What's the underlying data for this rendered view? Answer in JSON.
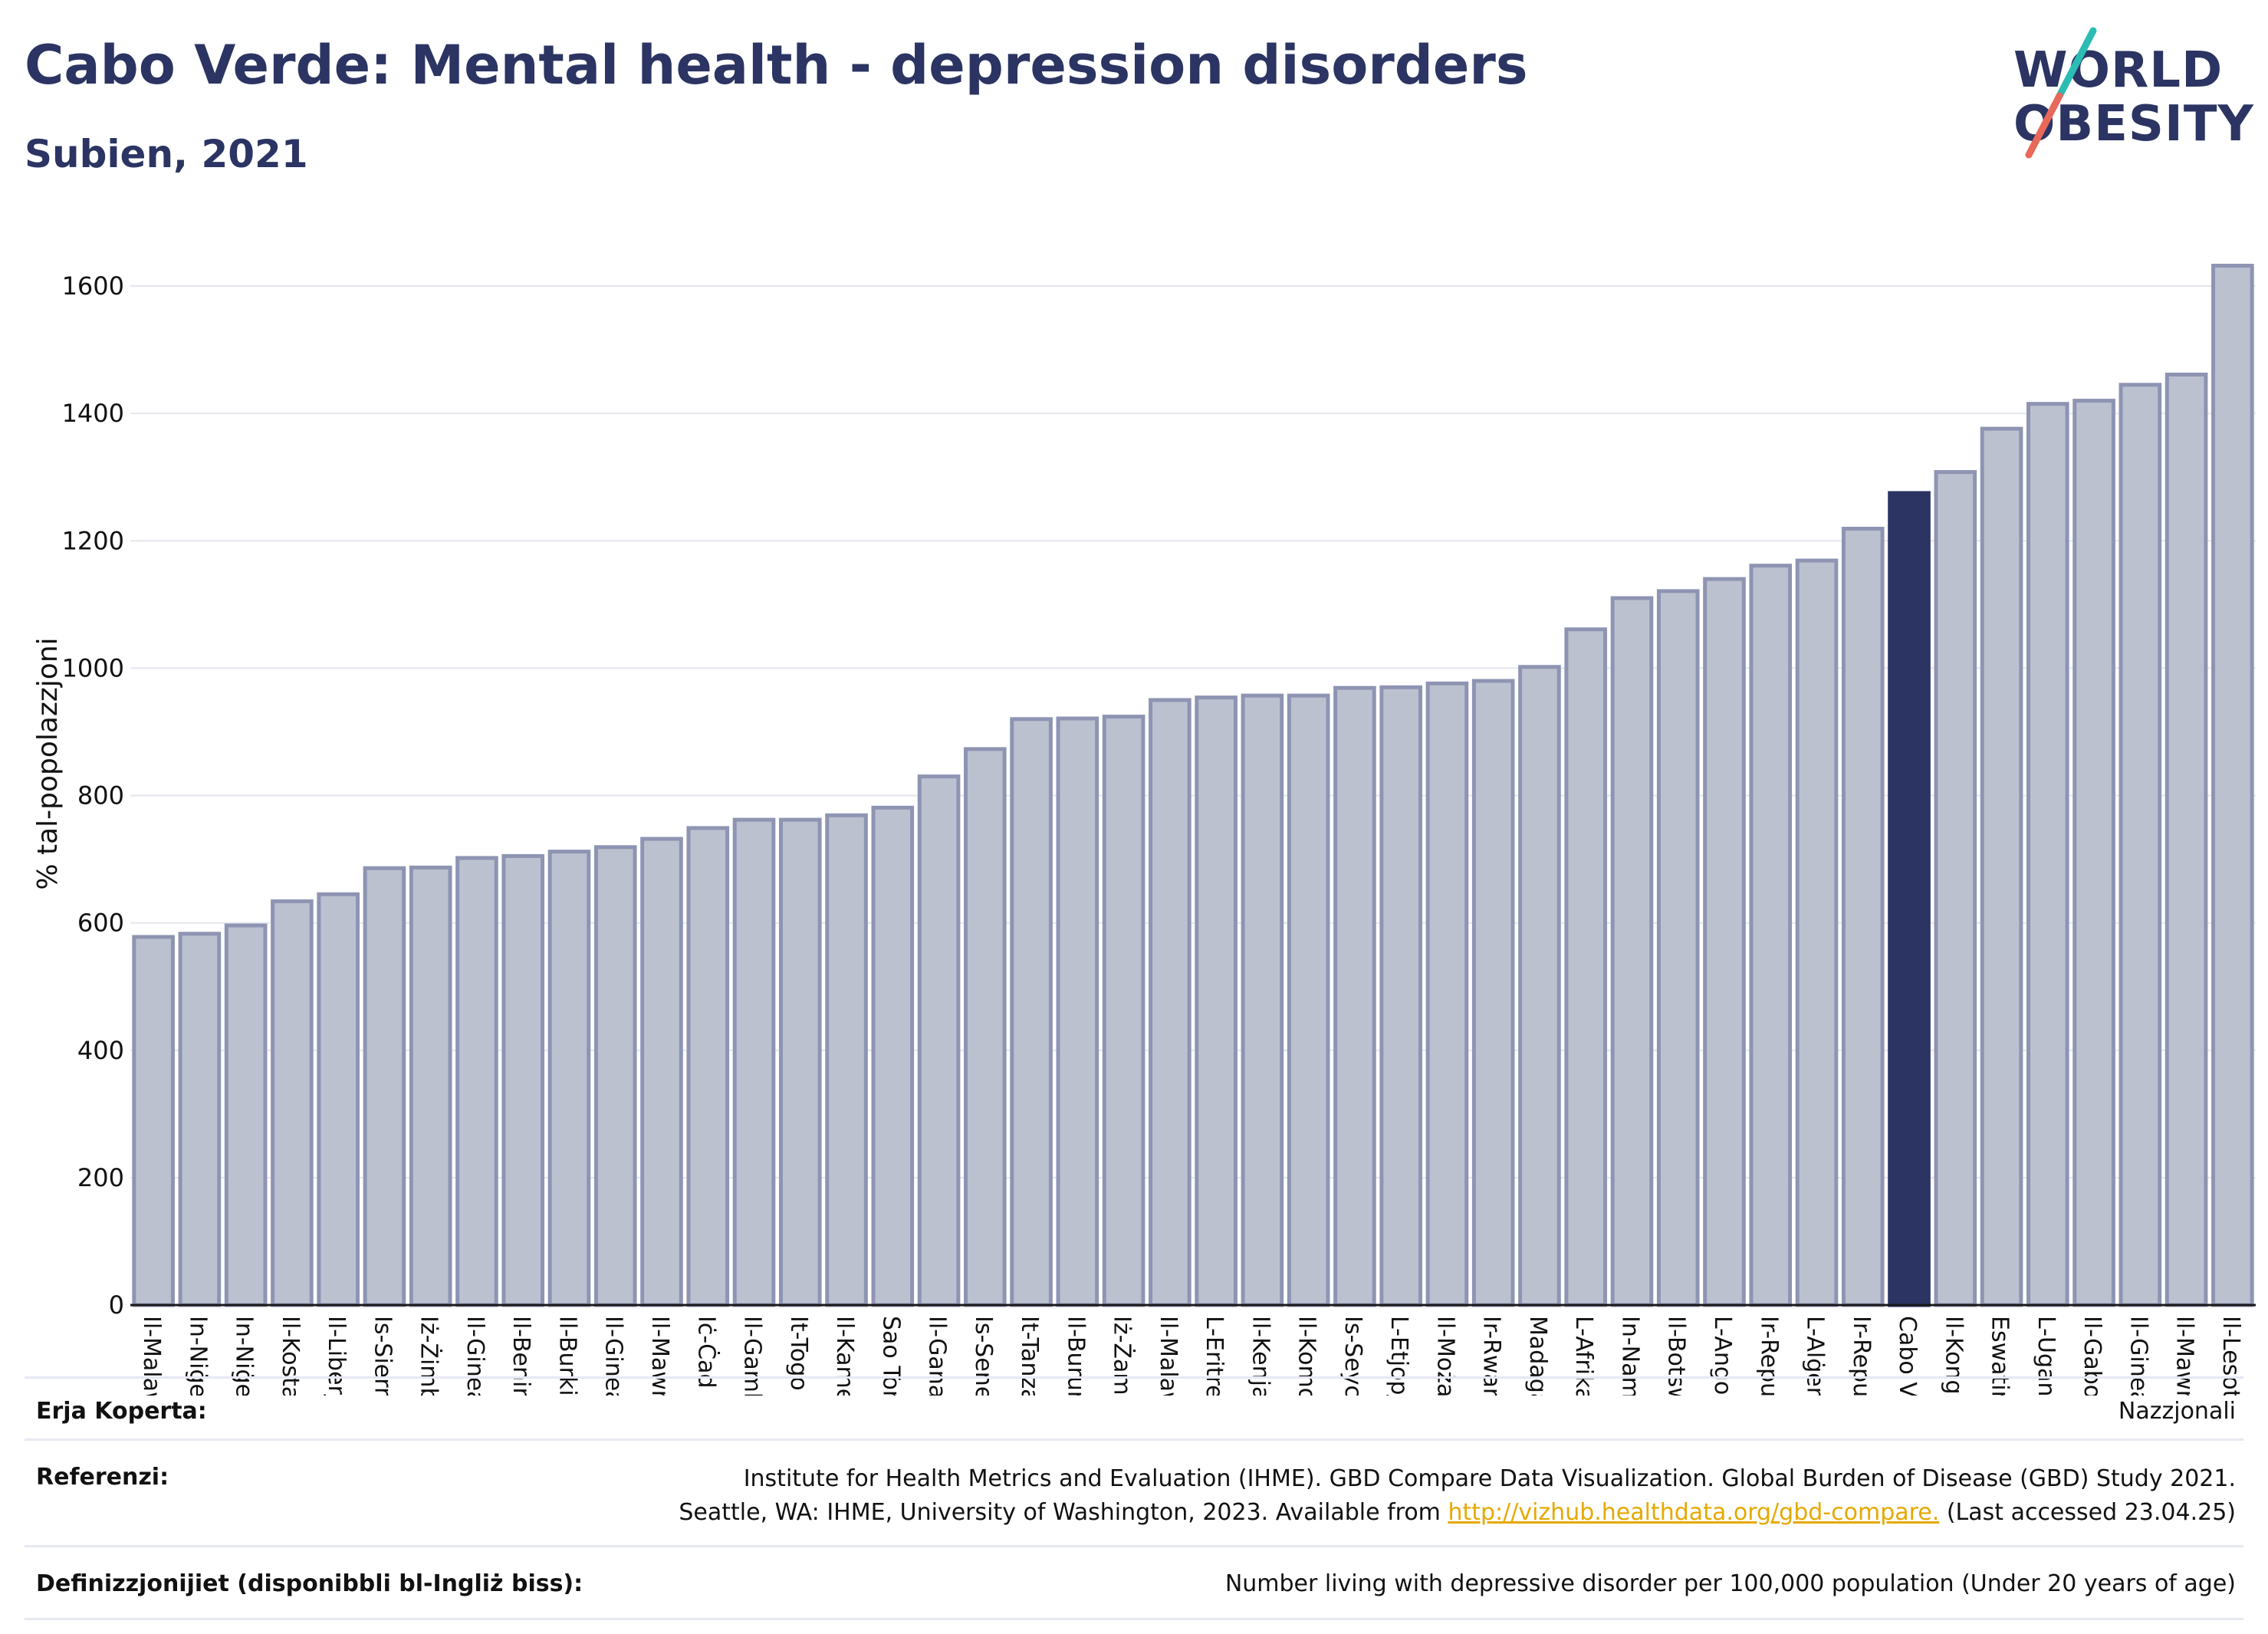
{
  "header": {
    "title": "Cabo Verde: Mental health - depression disorders",
    "subtitle": "Subien, 2021"
  },
  "logo": {
    "line1": "WORLD",
    "line2": "OBESITY",
    "colors": {
      "text": "#2b3462",
      "slash_top": "#2bbcb4",
      "slash_bottom": "#e8685a"
    }
  },
  "chart_data": {
    "type": "bar",
    "ylabel": "% tal-popolazzjoni",
    "xlabel": "",
    "ylim": [
      0,
      1700
    ],
    "yticks": [
      0,
      200,
      400,
      600,
      800,
      1000,
      1200,
      1400,
      1600
    ],
    "grid": true,
    "highlight": "Cabo Verde",
    "colors": {
      "bar": "#bcc1d0",
      "bar_edge": "#8e94b2",
      "highlight": "#2b3462"
    },
    "categories": [
      "Il-Malawi",
      "In-Niġer",
      "In-Niġerja",
      "Il-Kosta tal-Avorju",
      "Il-Liberja",
      "Is-Sierra Leone",
      "Iż-Żimbabwe",
      "Il-Ginea",
      "Il-Benin",
      "Il-Burkina Faso",
      "Il-Ginea-Bissau",
      "Il-Mawritanja",
      "Iċ-Ċad",
      "Il-Gambja",
      "It-Togo",
      "Il-Kamerun",
      "Sao Tome u Principe",
      "Il-Gana",
      "Is-Senegal",
      "It-Tanzanija",
      "Il-Burundi",
      "Iż-Żambja",
      "Il-Malawi",
      "L-Eritrea",
      "Il-Kenja",
      "Il-Komoros",
      "Is-Seychelles",
      "L-Etjopja",
      "Il-Możambik",
      "Ir-Rwanda",
      "Madagaskar",
      "L-Afrika t'Isfel",
      "In-Namibja",
      "Il-Botswana",
      "L-Angola",
      "Ir-Repubblika Demokratika",
      "L-Alġerija",
      "Ir-Repubblika tal-Afrika",
      "Cabo Verde",
      "Il-Kongo",
      "Eswatini",
      "L-Uganda",
      "Il-Gabon",
      "Il-Ginea Ekwatorjali",
      "Il-Mawrizju",
      "Il-Lesoto"
    ],
    "values": [
      578,
      583,
      596,
      634,
      645,
      686,
      687,
      702,
      705,
      712,
      719,
      732,
      749,
      762,
      762,
      769,
      781,
      830,
      873,
      920,
      921,
      924,
      950,
      954,
      957,
      957,
      969,
      970,
      976,
      980,
      1002,
      1061,
      1110,
      1121,
      1140,
      1161,
      1169,
      1219,
      1275,
      1308,
      1376,
      1415,
      1420,
      1445,
      1461,
      1632
    ]
  },
  "footer": {
    "copyright_label": "Erja Koperta:",
    "copyright_value": "Nazzjonali",
    "references_label": "Referenzi:",
    "references_line1": "Institute for Health Metrics and Evaluation (IHME). GBD Compare Data Visualization. Global Burden of Disease (GBD) Study 2021.",
    "references_line2_pre": "Seattle, WA: IHME, University of Washington, 2023. Available from ",
    "references_link": "http://vizhub.healthdata.org/gbd-compare.",
    "references_line2_post": " (Last accessed 23.04.25)",
    "definitions_label": "Definizzjonijiet (disponibbli bl-Ingliż biss):",
    "definitions_value": "Number living with depressive disorder per 100,000 population (Under 20 years of age)"
  }
}
